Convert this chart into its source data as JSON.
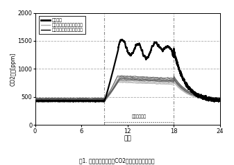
{
  "title": "図1. 換気の有無によるCO2濃度の差異【冬期】",
  "ylabel": "CO2濃度[ppm]",
  "xlabel": "時刻",
  "xlim": [
    0,
    24
  ],
  "ylim": [
    0,
    2000
  ],
  "yticks": [
    0,
    500,
    1000,
    1500,
    2000
  ],
  "xticks": [
    0,
    6,
    12,
    18,
    24
  ],
  "ventilation_stop_start": 9,
  "ventilation_stop_end": 18,
  "legend_labels": [
    "換気停止",
    "換気運転（熱交換「有」）",
    "換気運転（熱交換「無」）"
  ],
  "background_color": "#ffffff",
  "grid_color": "#aaaaaa",
  "annotation_text": "換気停止時間",
  "baseline_co2": 430,
  "peak_co2_stop": 1350,
  "peak_co2_ventilation_hi": 820,
  "peak_co2_ventilation_no": 860
}
